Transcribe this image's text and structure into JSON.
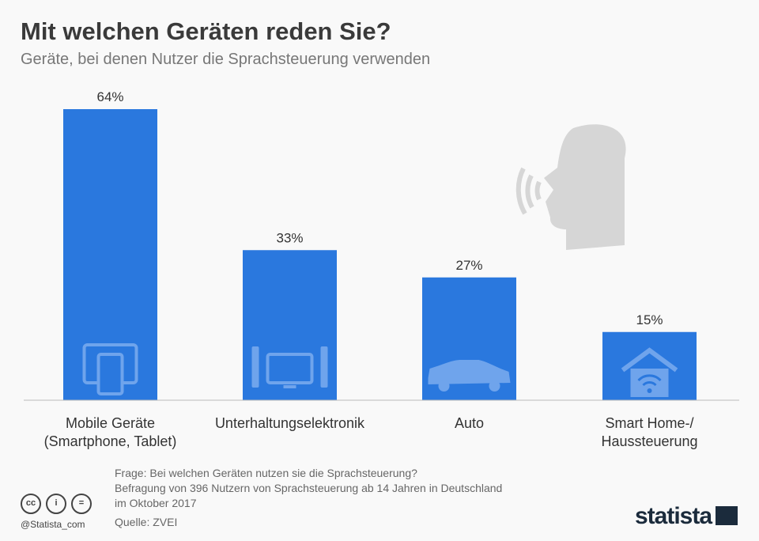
{
  "title": "Mit welchen Geräten reden Sie?",
  "subtitle": "Geräte, bei denen Nutzer die Sprachsteuerung verwenden",
  "chart_data": {
    "type": "bar",
    "categories": [
      "Mobile Geräte\n(Smartphone, Tablet)",
      "Unterhaltungselektronik",
      "Auto",
      "Smart Home-/\nHaussteuerung"
    ],
    "values": [
      64,
      33,
      27,
      15
    ],
    "data_labels": [
      "64%",
      "33%",
      "27%",
      "15%"
    ],
    "icons": [
      "tablet-smartphone-icon",
      "tv-speakers-icon",
      "car-icon",
      "smart-home-wifi-icon"
    ],
    "ylim": [
      0,
      64
    ],
    "bar_color": "#2a78de",
    "grid": false
  },
  "footer": {
    "question": "Frage: Bei welchen Geräten nutzen sie die Sprachsteuerung?",
    "survey_line1": "Befragung von 396 Nutzern von Sprachsteuerung ab 14 Jahren in Deutschland",
    "survey_line2": "im Oktober 2017",
    "source": "Quelle: ZVEI",
    "handle": "@Statista_com",
    "brand": "statista",
    "cc_icons": [
      "cc",
      "i",
      "="
    ]
  }
}
